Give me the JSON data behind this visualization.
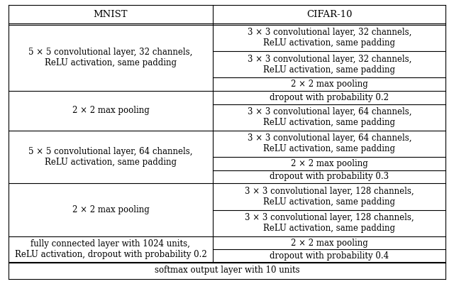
{
  "col1_header": "MNIST",
  "col2_header": "CIFAR-10",
  "background_color": "#ffffff",
  "border_color": "#000000",
  "font_size": 8.5,
  "header_font_size": 9.5,
  "footer": "softmax output layer with 10 units",
  "col_split": 0.468,
  "mnist_texts": [
    "5 × 5 convolutional layer, 32 channels,\nReLU activation, same padding",
    "2 × 2 max pooling",
    "5 × 5 convolutional layer, 64 channels,\nReLU activation, same padding",
    "2 × 2 max pooling",
    "fully connected layer with 1024 units,\nReLU activation, dropout with probability 0.2"
  ],
  "cifar_blocks": [
    [
      [
        2,
        "3 × 3 convolutional layer, 32 channels,\nReLU activation, same padding"
      ],
      [
        2,
        "3 × 3 convolutional layer, 32 channels,\nReLU activation, same padding"
      ],
      [
        1,
        "2 × 2 max pooling"
      ]
    ],
    [
      [
        1,
        "dropout with probability 0.2"
      ],
      [
        2,
        "3 × 3 convolutional layer, 64 channels,\nReLU activation, same padding"
      ]
    ],
    [
      [
        2,
        "3 × 3 convolutional layer, 64 channels,\nReLU activation, same padding"
      ],
      [
        1,
        "2 × 2 max pooling"
      ],
      [
        1,
        "dropout with probability 0.3"
      ]
    ],
    [
      [
        2,
        "3 × 3 convolutional layer, 128 channels,\nReLU activation, same padding"
      ],
      [
        2,
        "3 × 3 convolutional layer, 128 channels,\nReLU activation, same padding"
      ]
    ],
    [
      [
        1,
        "2 × 2 max pooling"
      ],
      [
        1,
        "dropout with probability 0.4"
      ]
    ]
  ],
  "block_heights": [
    5,
    3,
    4,
    4,
    2
  ],
  "header_units": 1.4,
  "footer_units": 1.3,
  "unit_scale": 1.0
}
